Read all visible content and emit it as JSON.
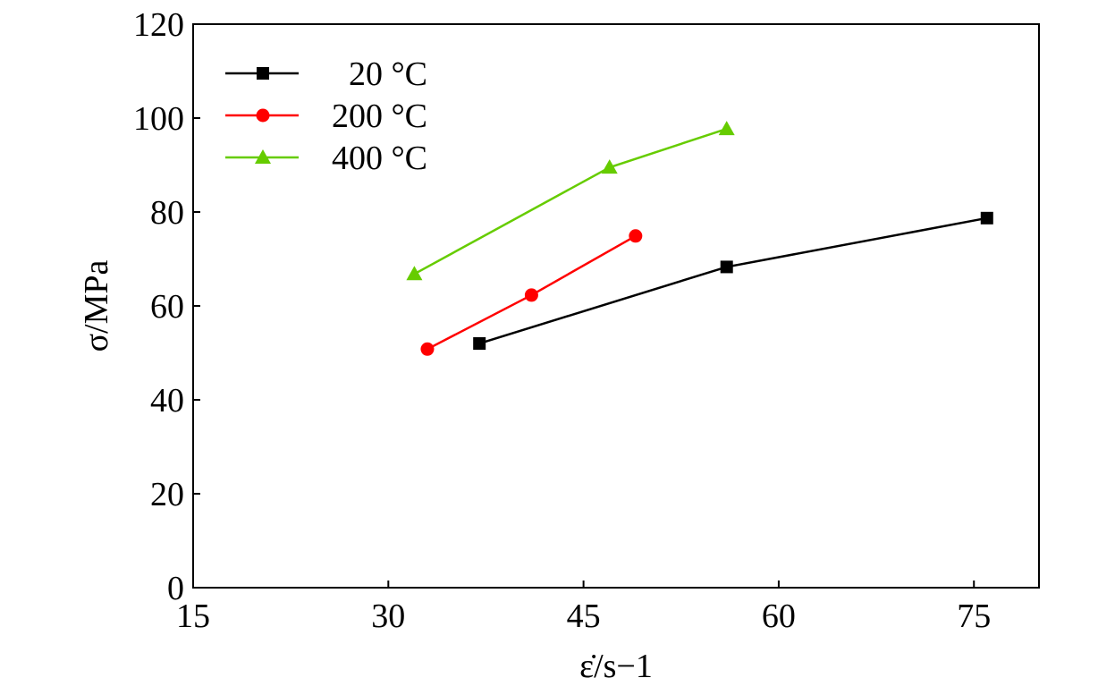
{
  "chart_data": {
    "type": "line",
    "xlabel": "ε̇/s−1",
    "ylabel": "σ/MPa",
    "xlim": [
      15,
      80
    ],
    "ylim": [
      0,
      120
    ],
    "xticks": [
      15,
      30,
      45,
      60,
      75
    ],
    "yticks": [
      0,
      20,
      40,
      60,
      80,
      100,
      120
    ],
    "grid": false,
    "legend_position": "top-left",
    "series": [
      {
        "name": "20 °C",
        "color": "#000000",
        "marker": "square",
        "x": [
          37,
          56,
          76
        ],
        "y": [
          52,
          68.3,
          78.7
        ]
      },
      {
        "name": "200 °C",
        "color": "#ff0000",
        "marker": "circle",
        "x": [
          33,
          41,
          49
        ],
        "y": [
          50.8,
          62.3,
          74.9
        ]
      },
      {
        "name": "400 °C",
        "color": "#66cc00",
        "marker": "triangle",
        "x": [
          32,
          47,
          56
        ],
        "y": [
          66.8,
          89.5,
          97.7
        ]
      }
    ]
  }
}
